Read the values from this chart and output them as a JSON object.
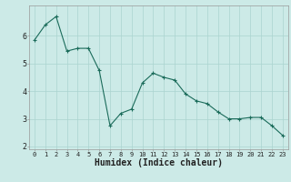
{
  "x": [
    0,
    1,
    2,
    3,
    4,
    5,
    6,
    7,
    8,
    9,
    10,
    11,
    12,
    13,
    14,
    15,
    16,
    17,
    18,
    19,
    20,
    21,
    22,
    23
  ],
  "y": [
    5.85,
    6.4,
    6.7,
    5.45,
    5.55,
    5.55,
    4.75,
    2.75,
    3.2,
    3.35,
    4.3,
    4.65,
    4.5,
    4.4,
    3.9,
    3.65,
    3.55,
    3.25,
    3.0,
    3.0,
    3.05,
    3.05,
    2.75,
    2.4
  ],
  "line_color": "#1a6b5a",
  "marker": "+",
  "marker_size": 3,
  "xlabel": "Humidex (Indice chaleur)",
  "xlim": [
    -0.5,
    23.5
  ],
  "ylim": [
    1.9,
    7.1
  ],
  "yticks": [
    2,
    3,
    4,
    5,
    6
  ],
  "xtick_labels": [
    "0",
    "1",
    "2",
    "3",
    "4",
    "5",
    "6",
    "7",
    "8",
    "9",
    "10",
    "11",
    "12",
    "13",
    "14",
    "15",
    "16",
    "17",
    "18",
    "19",
    "20",
    "21",
    "22",
    "23"
  ],
  "bg_color": "#cceae7",
  "grid_color": "#aad4d0",
  "axis_color": "#999999",
  "xlabel_fontsize": 7,
  "tick_fontsize": 5
}
